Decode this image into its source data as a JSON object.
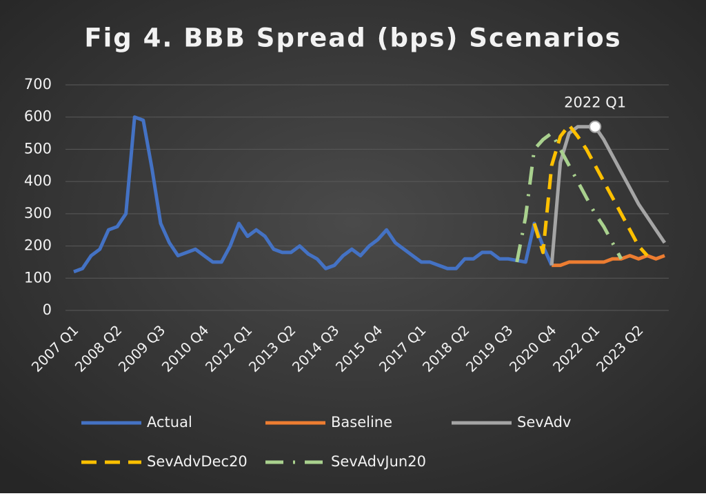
{
  "chart_data": {
    "type": "line",
    "title": "Fig 4. BBB Spread (bps) Scenarios",
    "categories": [
      "2007 Q1",
      null,
      null,
      null,
      null,
      "2008 Q2",
      null,
      null,
      null,
      null,
      "2009 Q3",
      null,
      null,
      null,
      null,
      "2010 Q4",
      null,
      null,
      null,
      null,
      "2012 Q1",
      null,
      null,
      null,
      null,
      "2013 Q2",
      null,
      null,
      null,
      null,
      "2014 Q3",
      null,
      null,
      null,
      null,
      "2015 Q4",
      null,
      null,
      null,
      null,
      "2017 Q1",
      null,
      null,
      null,
      null,
      "2018 Q2",
      null,
      null,
      null,
      null,
      "2019 Q3",
      null,
      null,
      null,
      null,
      "2020 Q4",
      null,
      null,
      null,
      null,
      "2022 Q1",
      null,
      null,
      null,
      null,
      "2023 Q2",
      null,
      null,
      null
    ],
    "series": [
      {
        "name": "Actual",
        "color": "#4472c4",
        "dash": "solid",
        "values": [
          120,
          130,
          170,
          190,
          250,
          260,
          300,
          600,
          590,
          440,
          270,
          210,
          170,
          180,
          190,
          170,
          150,
          150,
          200,
          270,
          230,
          250,
          230,
          190,
          180,
          180,
          200,
          175,
          160,
          130,
          140,
          170,
          190,
          170,
          200,
          220,
          250,
          210,
          190,
          170,
          150,
          150,
          140,
          130,
          130,
          160,
          160,
          180,
          180,
          160,
          160,
          155,
          150,
          270,
          200,
          140,
          null,
          null,
          null,
          null,
          null,
          null,
          null,
          null,
          null,
          null,
          null,
          null,
          null
        ]
      },
      {
        "name": "Baseline",
        "color": "#ed7d31",
        "dash": "solid",
        "values": [
          null,
          null,
          null,
          null,
          null,
          null,
          null,
          null,
          null,
          null,
          null,
          null,
          null,
          null,
          null,
          null,
          null,
          null,
          null,
          null,
          null,
          null,
          null,
          null,
          null,
          null,
          null,
          null,
          null,
          null,
          null,
          null,
          null,
          null,
          null,
          null,
          null,
          null,
          null,
          null,
          null,
          null,
          null,
          null,
          null,
          null,
          null,
          null,
          null,
          null,
          null,
          null,
          null,
          null,
          null,
          140,
          140,
          150,
          150,
          150,
          150,
          150,
          160,
          160,
          170,
          160,
          170,
          160,
          170
        ]
      },
      {
        "name": "SevAdv",
        "color": "#a5a5a5",
        "dash": "solid",
        "values": [
          null,
          null,
          null,
          null,
          null,
          null,
          null,
          null,
          null,
          null,
          null,
          null,
          null,
          null,
          null,
          null,
          null,
          null,
          null,
          null,
          null,
          null,
          null,
          null,
          null,
          null,
          null,
          null,
          null,
          null,
          null,
          null,
          null,
          null,
          null,
          null,
          null,
          null,
          null,
          null,
          null,
          null,
          null,
          null,
          null,
          null,
          null,
          null,
          null,
          null,
          null,
          null,
          null,
          null,
          null,
          140,
          460,
          550,
          570,
          570,
          570,
          530,
          480,
          430,
          380,
          330,
          290,
          250,
          210
        ]
      },
      {
        "name": "SevAdvDec20",
        "color": "#ffc000",
        "dash": "dash",
        "values": [
          null,
          null,
          null,
          null,
          null,
          null,
          null,
          null,
          null,
          null,
          null,
          null,
          null,
          null,
          null,
          null,
          null,
          null,
          null,
          null,
          null,
          null,
          null,
          null,
          null,
          null,
          null,
          null,
          null,
          null,
          null,
          null,
          null,
          null,
          null,
          null,
          null,
          null,
          null,
          null,
          null,
          null,
          null,
          null,
          null,
          null,
          null,
          null,
          null,
          null,
          null,
          null,
          null,
          270,
          180,
          450,
          540,
          575,
          540,
          500,
          450,
          400,
          350,
          300,
          250,
          200,
          170,
          null,
          null
        ]
      },
      {
        "name": "SevAdvJun20",
        "color": "#a9d18e",
        "dash": "dash-dot",
        "values": [
          null,
          null,
          null,
          null,
          null,
          null,
          null,
          null,
          null,
          null,
          null,
          null,
          null,
          null,
          null,
          null,
          null,
          null,
          null,
          null,
          null,
          null,
          null,
          null,
          null,
          null,
          null,
          null,
          null,
          null,
          null,
          null,
          null,
          null,
          null,
          null,
          null,
          null,
          null,
          null,
          null,
          null,
          null,
          null,
          null,
          null,
          null,
          null,
          null,
          null,
          null,
          150,
          290,
          500,
          530,
          550,
          500,
          450,
          400,
          350,
          300,
          260,
          210,
          160,
          null,
          null,
          null,
          null,
          null
        ]
      }
    ],
    "annotations": [
      {
        "text": "2022 Q1"
      }
    ],
    "ylim": [
      0,
      700
    ],
    "yticks": [
      0,
      100,
      200,
      300,
      400,
      500,
      600,
      700
    ],
    "grid": true,
    "legend": "bottom"
  }
}
